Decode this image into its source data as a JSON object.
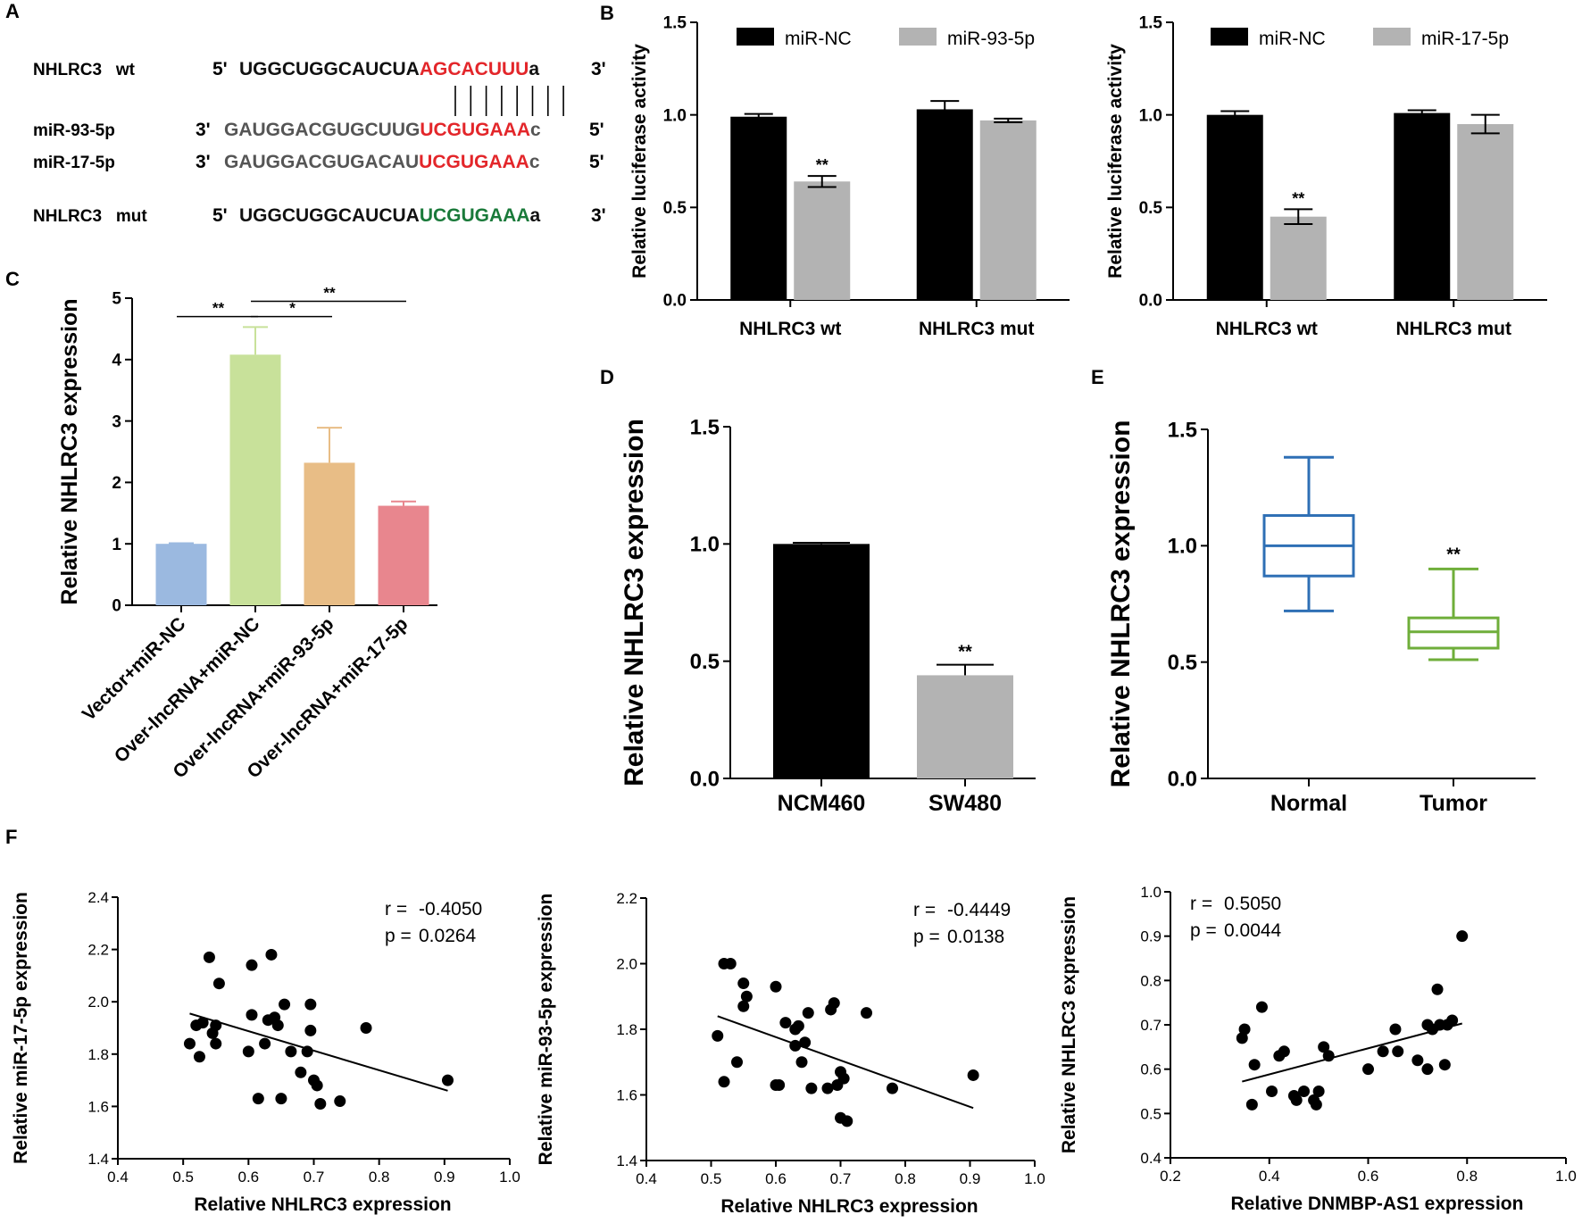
{
  "panel_labels": {
    "a": "A",
    "b": "B",
    "c": "C",
    "d": "D",
    "e": "E",
    "f": "F"
  },
  "panel_a": {
    "rows": [
      {
        "name": "NHLRC3   wt",
        "prime_l": "5'",
        "segments": [
          {
            "text": "UGGCUGGCAUCUA",
            "color": "#111111"
          },
          {
            "text": "AGCACUUU",
            "color": "#e3262a"
          },
          {
            "text": "a",
            "color": "#111111"
          }
        ],
        "prime_r": "3'"
      },
      {
        "name": "miR-93-5p",
        "prime_l": "3'",
        "segments": [
          {
            "text": "GAUGGACGUGCUUG",
            "color": "#555555"
          },
          {
            "text": "UCGUGAAA",
            "color": "#e3262a"
          },
          {
            "text": "c",
            "color": "#555555"
          }
        ],
        "prime_r": "5'"
      },
      {
        "name": "miR-17-5p",
        "prime_l": "3'",
        "segments": [
          {
            "text": "GAUGGACGUGACAU",
            "color": "#555555"
          },
          {
            "text": "UCGUGAAA",
            "color": "#e3262a"
          },
          {
            "text": "c",
            "color": "#555555"
          }
        ],
        "prime_r": "5'"
      },
      {
        "name": "NHLRC3   mut",
        "prime_l": "5'",
        "segments": [
          {
            "text": "UGGCUGGCAUCUA",
            "color": "#111111"
          },
          {
            "text": "UCGUGAAA",
            "color": "#1a7a3a"
          },
          {
            "text": "a",
            "color": "#111111"
          }
        ],
        "prime_r": "3'"
      }
    ],
    "pair_lines": 8
  },
  "chart_data": [
    {
      "id": "B1",
      "type": "bar",
      "ylabel": "Relative luciferase activity",
      "ylim": [
        0,
        1.5
      ],
      "yticks": [
        "0.0",
        "0.5",
        "1.0",
        "1.5"
      ],
      "categories": [
        "NHLRC3 wt",
        "NHLRC3 mut"
      ],
      "series": [
        {
          "name": "miR-NC",
          "color": "#000000",
          "values": [
            0.99,
            1.03
          ],
          "errors": [
            0.015,
            0.045
          ],
          "sig": [
            "",
            ""
          ]
        },
        {
          "name": "miR-93-5p",
          "color": "#b3b3b3",
          "values": [
            0.64,
            0.97
          ],
          "errors": [
            0.03,
            0.01
          ],
          "sig": [
            "**",
            ""
          ]
        }
      ]
    },
    {
      "id": "B2",
      "type": "bar",
      "ylabel": "Relative luciferase activity",
      "ylim": [
        0,
        1.5
      ],
      "yticks": [
        "0.0",
        "0.5",
        "1.0",
        "1.5"
      ],
      "categories": [
        "NHLRC3 wt",
        "NHLRC3 mut"
      ],
      "series": [
        {
          "name": "miR-NC",
          "color": "#000000",
          "values": [
            1.0,
            1.01
          ],
          "errors": [
            0.02,
            0.015
          ],
          "sig": [
            "",
            ""
          ]
        },
        {
          "name": "miR-17-5p",
          "color": "#b3b3b3",
          "values": [
            0.45,
            0.95
          ],
          "errors": [
            0.04,
            0.05
          ],
          "sig": [
            "**",
            ""
          ]
        }
      ]
    },
    {
      "id": "C",
      "type": "bar",
      "ylabel": "Relative NHLRC3 expression",
      "ylim": [
        0,
        5
      ],
      "yticks": [
        "0",
        "1",
        "2",
        "3",
        "4",
        "5"
      ],
      "categories": [
        "Vector+miR-NC",
        "Over-lncRNA+miR-NC",
        "Over-lncRNA+miR-93-5p",
        "Over-lncRNA+miR-17-5p"
      ],
      "values": [
        1.0,
        4.08,
        2.32,
        1.62
      ],
      "errors": [
        0.01,
        0.45,
        0.57,
        0.07
      ],
      "colors": [
        "#9bb9e0",
        "#c8e19a",
        "#e8bd86",
        "#e8868e"
      ],
      "brackets": [
        {
          "from": 0,
          "to": 1,
          "y": 4.7,
          "label": "**"
        },
        {
          "from": 1,
          "to": 2,
          "y": 4.7,
          "label": "*"
        },
        {
          "from": 1,
          "to": 3,
          "y": 4.95,
          "label": "**"
        }
      ]
    },
    {
      "id": "D",
      "type": "bar",
      "ylabel": "Relative NHLRC3 expression",
      "ylim": [
        0,
        1.5
      ],
      "yticks": [
        "0.0",
        "0.5",
        "1.0",
        "1.5"
      ],
      "categories": [
        "NCM460",
        "SW480"
      ],
      "values": [
        1.0,
        0.44
      ],
      "errors": [
        0.005,
        0.045
      ],
      "colors": [
        "#000000",
        "#b3b3b3"
      ],
      "sig": [
        "",
        "**"
      ]
    },
    {
      "id": "E",
      "type": "box",
      "ylabel": "Relative NHLRC3 expression",
      "ylim": [
        0,
        1.5
      ],
      "yticks": [
        "0.0",
        "0.5",
        "1.0",
        "1.5"
      ],
      "categories": [
        "Normal",
        "Tumor"
      ],
      "boxes": [
        {
          "min": 0.72,
          "q1": 0.87,
          "median": 1.0,
          "q3": 1.13,
          "max": 1.38,
          "color": "#2e6fb5",
          "sig": ""
        },
        {
          "min": 0.51,
          "q1": 0.56,
          "median": 0.63,
          "q3": 0.69,
          "max": 0.9,
          "color": "#6fae3a",
          "sig": "**"
        }
      ]
    },
    {
      "id": "F1",
      "type": "scatter",
      "xlabel": "Relative NHLRC3 expression",
      "ylabel": "Relative miR-17-5p expression",
      "xlim": [
        0.4,
        1.0
      ],
      "ylim": [
        1.4,
        2.4
      ],
      "xticks": [
        "0.4",
        "0.5",
        "0.6",
        "0.7",
        "0.8",
        "0.9",
        "1.0"
      ],
      "yticks": [
        "1.4",
        "1.6",
        "1.8",
        "2.0",
        "2.2",
        "2.4"
      ],
      "r_label": "r =",
      "r_value": "-0.4050",
      "p_label": "p =",
      "p_value": "0.0264",
      "fit": {
        "x": [
          0.51,
          0.905
        ],
        "y": [
          1.955,
          1.66
        ]
      },
      "points": [
        [
          0.51,
          1.84
        ],
        [
          0.52,
          1.91
        ],
        [
          0.525,
          1.79
        ],
        [
          0.53,
          1.92
        ],
        [
          0.54,
          2.17
        ],
        [
          0.545,
          1.88
        ],
        [
          0.55,
          1.91
        ],
        [
          0.555,
          2.07
        ],
        [
          0.55,
          1.84
        ],
        [
          0.6,
          1.81
        ],
        [
          0.605,
          2.14
        ],
        [
          0.605,
          1.95
        ],
        [
          0.615,
          1.63
        ],
        [
          0.625,
          1.84
        ],
        [
          0.63,
          1.93
        ],
        [
          0.635,
          2.18
        ],
        [
          0.64,
          1.94
        ],
        [
          0.645,
          1.91
        ],
        [
          0.65,
          1.63
        ],
        [
          0.655,
          1.99
        ],
        [
          0.665,
          1.81
        ],
        [
          0.68,
          1.73
        ],
        [
          0.69,
          1.81
        ],
        [
          0.695,
          1.99
        ],
        [
          0.695,
          1.89
        ],
        [
          0.7,
          1.7
        ],
        [
          0.705,
          1.68
        ],
        [
          0.71,
          1.61
        ],
        [
          0.74,
          1.62
        ],
        [
          0.78,
          1.9
        ],
        [
          0.905,
          1.7
        ]
      ]
    },
    {
      "id": "F2",
      "type": "scatter",
      "xlabel": "Relative NHLRC3 expression",
      "ylabel": "Relative miR-93-5p expression",
      "xlim": [
        0.4,
        1.0
      ],
      "ylim": [
        1.4,
        2.2
      ],
      "xticks": [
        "0.4",
        "0.5",
        "0.6",
        "0.7",
        "0.8",
        "0.9",
        "1.0"
      ],
      "yticks": [
        "1.4",
        "1.6",
        "1.8",
        "2.0",
        "2.2"
      ],
      "r_label": "r =",
      "r_value": "-0.4449",
      "p_label": "p =",
      "p_value": "0.0138",
      "fit": {
        "x": [
          0.51,
          0.905
        ],
        "y": [
          1.84,
          1.56
        ]
      },
      "points": [
        [
          0.51,
          1.78
        ],
        [
          0.52,
          1.64
        ],
        [
          0.52,
          2.0
        ],
        [
          0.53,
          2.0
        ],
        [
          0.54,
          1.7
        ],
        [
          0.55,
          1.87
        ],
        [
          0.55,
          1.94
        ],
        [
          0.555,
          1.9
        ],
        [
          0.6,
          1.93
        ],
        [
          0.6,
          1.63
        ],
        [
          0.605,
          1.63
        ],
        [
          0.615,
          1.82
        ],
        [
          0.63,
          1.75
        ],
        [
          0.63,
          1.8
        ],
        [
          0.635,
          1.81
        ],
        [
          0.64,
          1.7
        ],
        [
          0.645,
          1.76
        ],
        [
          0.65,
          1.85
        ],
        [
          0.655,
          1.62
        ],
        [
          0.68,
          1.62
        ],
        [
          0.685,
          1.86
        ],
        [
          0.69,
          1.88
        ],
        [
          0.695,
          1.63
        ],
        [
          0.7,
          1.67
        ],
        [
          0.7,
          1.53
        ],
        [
          0.705,
          1.65
        ],
        [
          0.71,
          1.52
        ],
        [
          0.74,
          1.85
        ],
        [
          0.78,
          1.62
        ],
        [
          0.905,
          1.66
        ]
      ]
    },
    {
      "id": "F3",
      "type": "scatter",
      "xlabel": "Relative DNMBP-AS1 expression",
      "ylabel": "Relative NHLRC3 expression",
      "xlim": [
        0.2,
        1.0
      ],
      "ylim": [
        0.4,
        1.0
      ],
      "xticks": [
        "0.2",
        "0.4",
        "0.6",
        "0.8",
        "1.0"
      ],
      "yticks": [
        "0.4",
        "0.5",
        "0.6",
        "0.7",
        "0.8",
        "0.9",
        "1.0"
      ],
      "r_label": "r =",
      "r_value": "0.5050",
      "p_label": "p =",
      "p_value": "0.0044",
      "fit": {
        "x": [
          0.345,
          0.79
        ],
        "y": [
          0.572,
          0.703
        ]
      },
      "points": [
        [
          0.345,
          0.67
        ],
        [
          0.35,
          0.69
        ],
        [
          0.365,
          0.52
        ],
        [
          0.37,
          0.61
        ],
        [
          0.385,
          0.74
        ],
        [
          0.405,
          0.55
        ],
        [
          0.42,
          0.63
        ],
        [
          0.43,
          0.64
        ],
        [
          0.45,
          0.54
        ],
        [
          0.455,
          0.53
        ],
        [
          0.47,
          0.55
        ],
        [
          0.49,
          0.53
        ],
        [
          0.495,
          0.52
        ],
        [
          0.5,
          0.55
        ],
        [
          0.51,
          0.65
        ],
        [
          0.52,
          0.63
        ],
        [
          0.6,
          0.6
        ],
        [
          0.63,
          0.64
        ],
        [
          0.655,
          0.69
        ],
        [
          0.66,
          0.64
        ],
        [
          0.7,
          0.62
        ],
        [
          0.72,
          0.7
        ],
        [
          0.72,
          0.6
        ],
        [
          0.73,
          0.69
        ],
        [
          0.74,
          0.78
        ],
        [
          0.745,
          0.7
        ],
        [
          0.755,
          0.61
        ],
        [
          0.76,
          0.7
        ],
        [
          0.77,
          0.71
        ],
        [
          0.79,
          0.9
        ]
      ]
    }
  ]
}
